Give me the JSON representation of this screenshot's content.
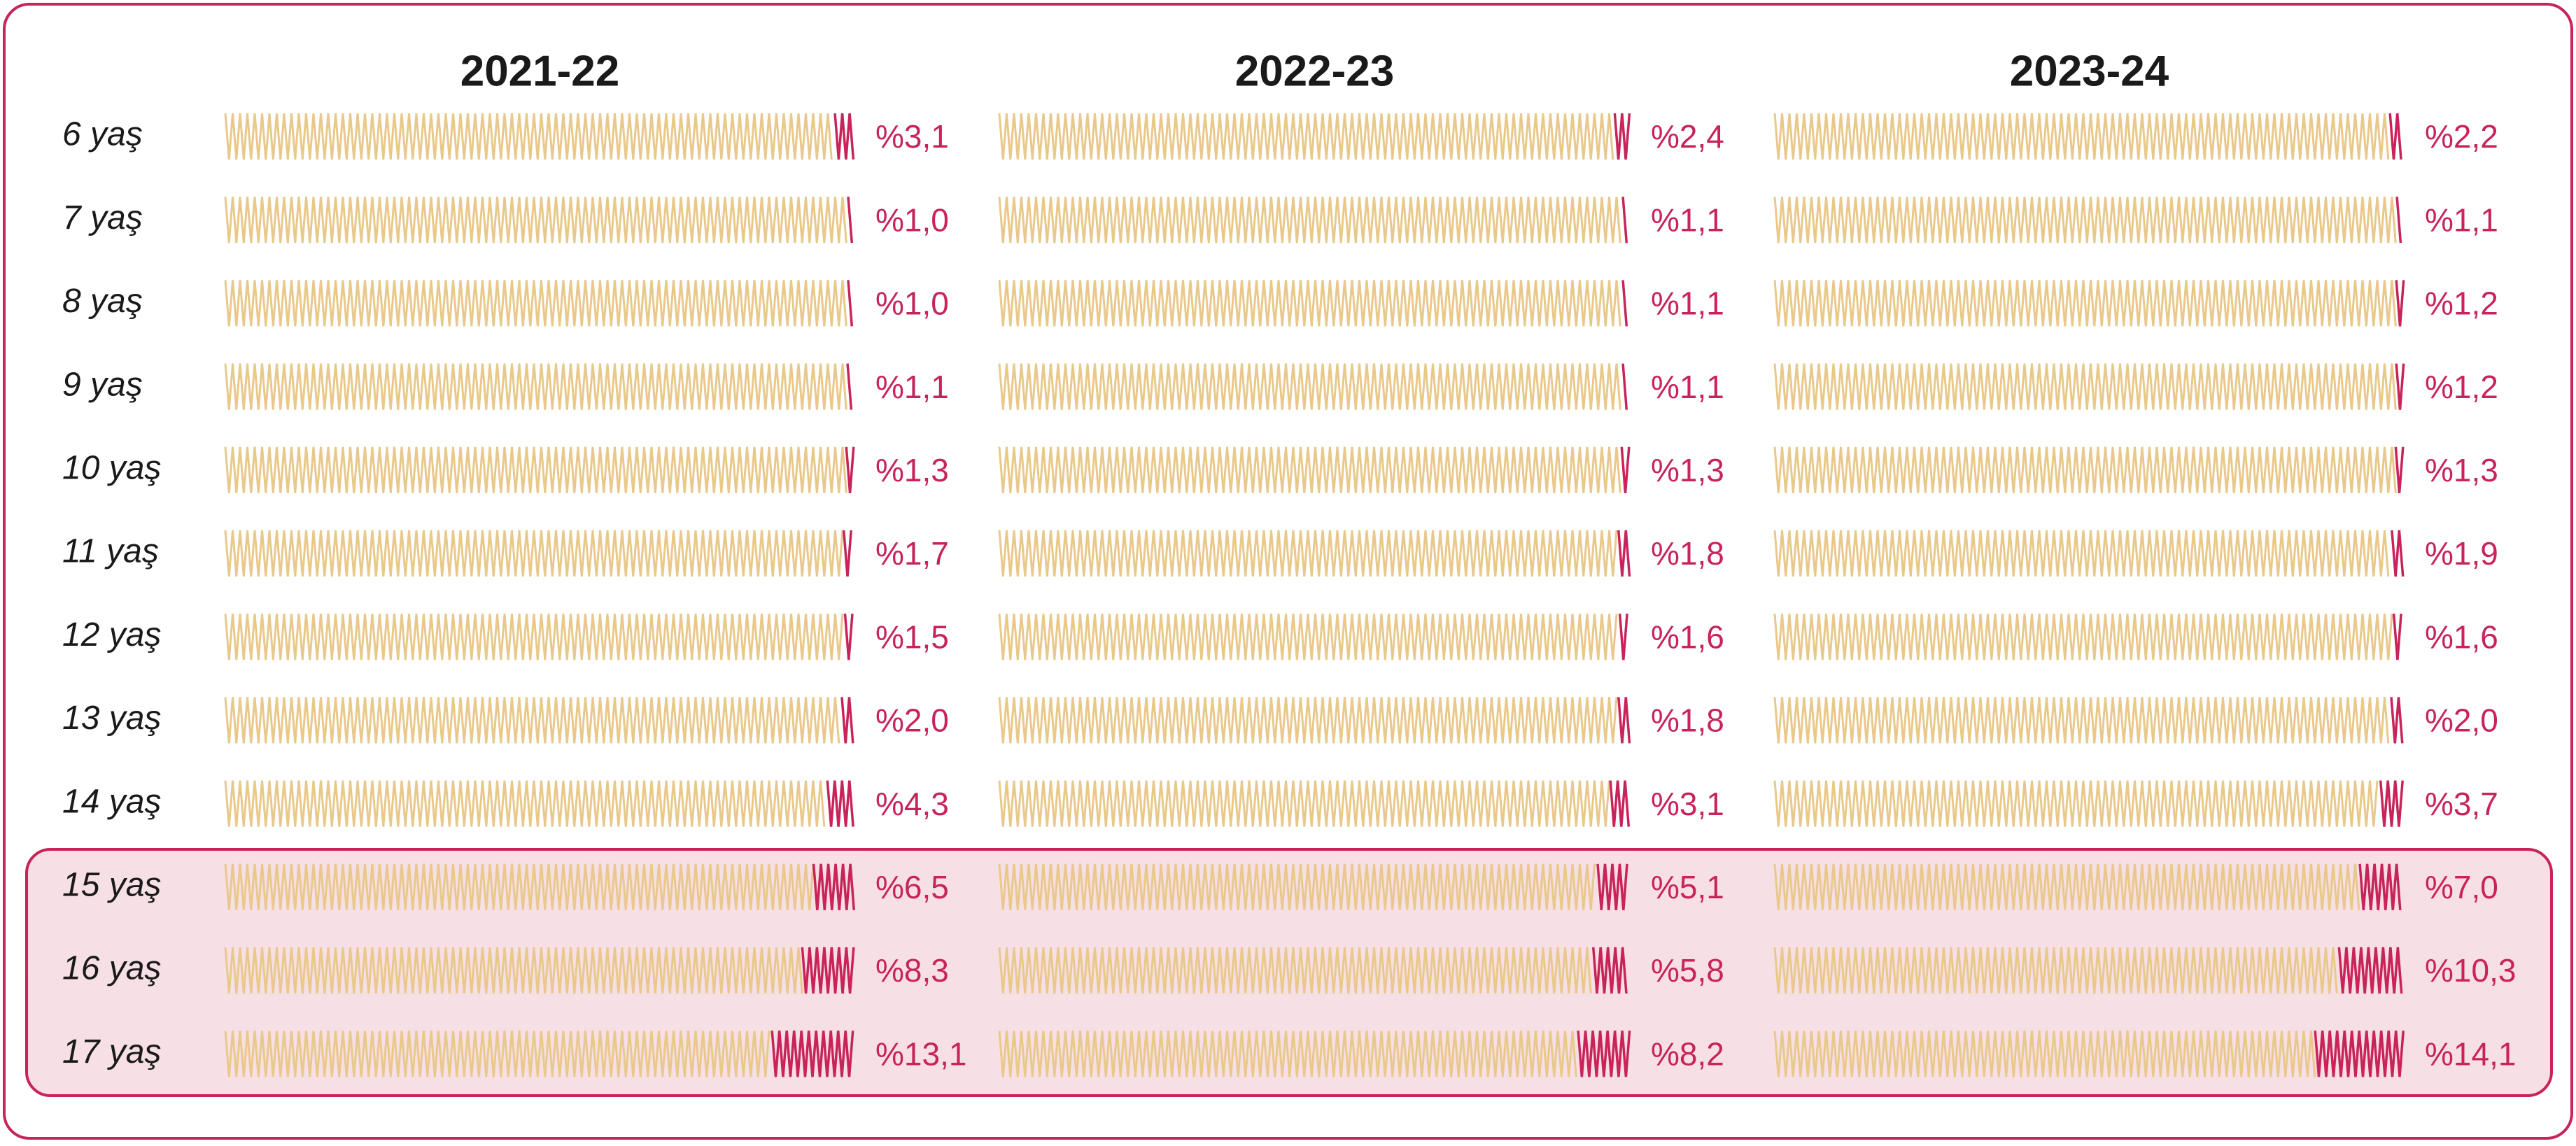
{
  "chart_data": {
    "type": "zigzag-bar",
    "categories": [
      "6 yaş",
      "7 yaş",
      "8 yaş",
      "9 yaş",
      "10 yaş",
      "11 yaş",
      "12 yaş",
      "13 yaş",
      "14 yaş",
      "15 yaş",
      "16 yaş",
      "17 yaş"
    ],
    "xlim": [
      0,
      100
    ],
    "track_color": "#e9c98b",
    "series": [
      {
        "name": "2021-22",
        "color": "#c8245a",
        "values": [
          3.1,
          1.0,
          1.0,
          1.1,
          1.3,
          1.7,
          1.5,
          2.0,
          4.3,
          6.5,
          8.3,
          13.1
        ],
        "value_labels": [
          "%3,1",
          "%1,0",
          "%1,0",
          "%1,1",
          "%1,3",
          "%1,7",
          "%1,5",
          "%2,0",
          "%4,3",
          "%6,5",
          "%8,3",
          "%13,1"
        ]
      },
      {
        "name": "2022-23",
        "color": "#c8245a",
        "values": [
          2.4,
          1.1,
          1.1,
          1.1,
          1.3,
          1.8,
          1.6,
          1.8,
          3.1,
          5.1,
          5.8,
          8.2
        ],
        "value_labels": [
          "%2,4",
          "%1,1",
          "%1,1",
          "%1,1",
          "%1,3",
          "%1,8",
          "%1,6",
          "%1,8",
          "%3,1",
          "%5,1",
          "%5,8",
          "%8,2"
        ]
      },
      {
        "name": "2023-24",
        "color": "#c8245a",
        "values": [
          2.2,
          1.1,
          1.2,
          1.2,
          1.3,
          1.9,
          1.6,
          2.0,
          3.7,
          7.0,
          10.3,
          14.1
        ],
        "value_labels": [
          "%2,2",
          "%1,1",
          "%1,2",
          "%1,2",
          "%1,3",
          "%1,9",
          "%1,6",
          "%2,0",
          "%3,7",
          "%7,0",
          "%10,3",
          "%14,1"
        ]
      }
    ]
  }
}
